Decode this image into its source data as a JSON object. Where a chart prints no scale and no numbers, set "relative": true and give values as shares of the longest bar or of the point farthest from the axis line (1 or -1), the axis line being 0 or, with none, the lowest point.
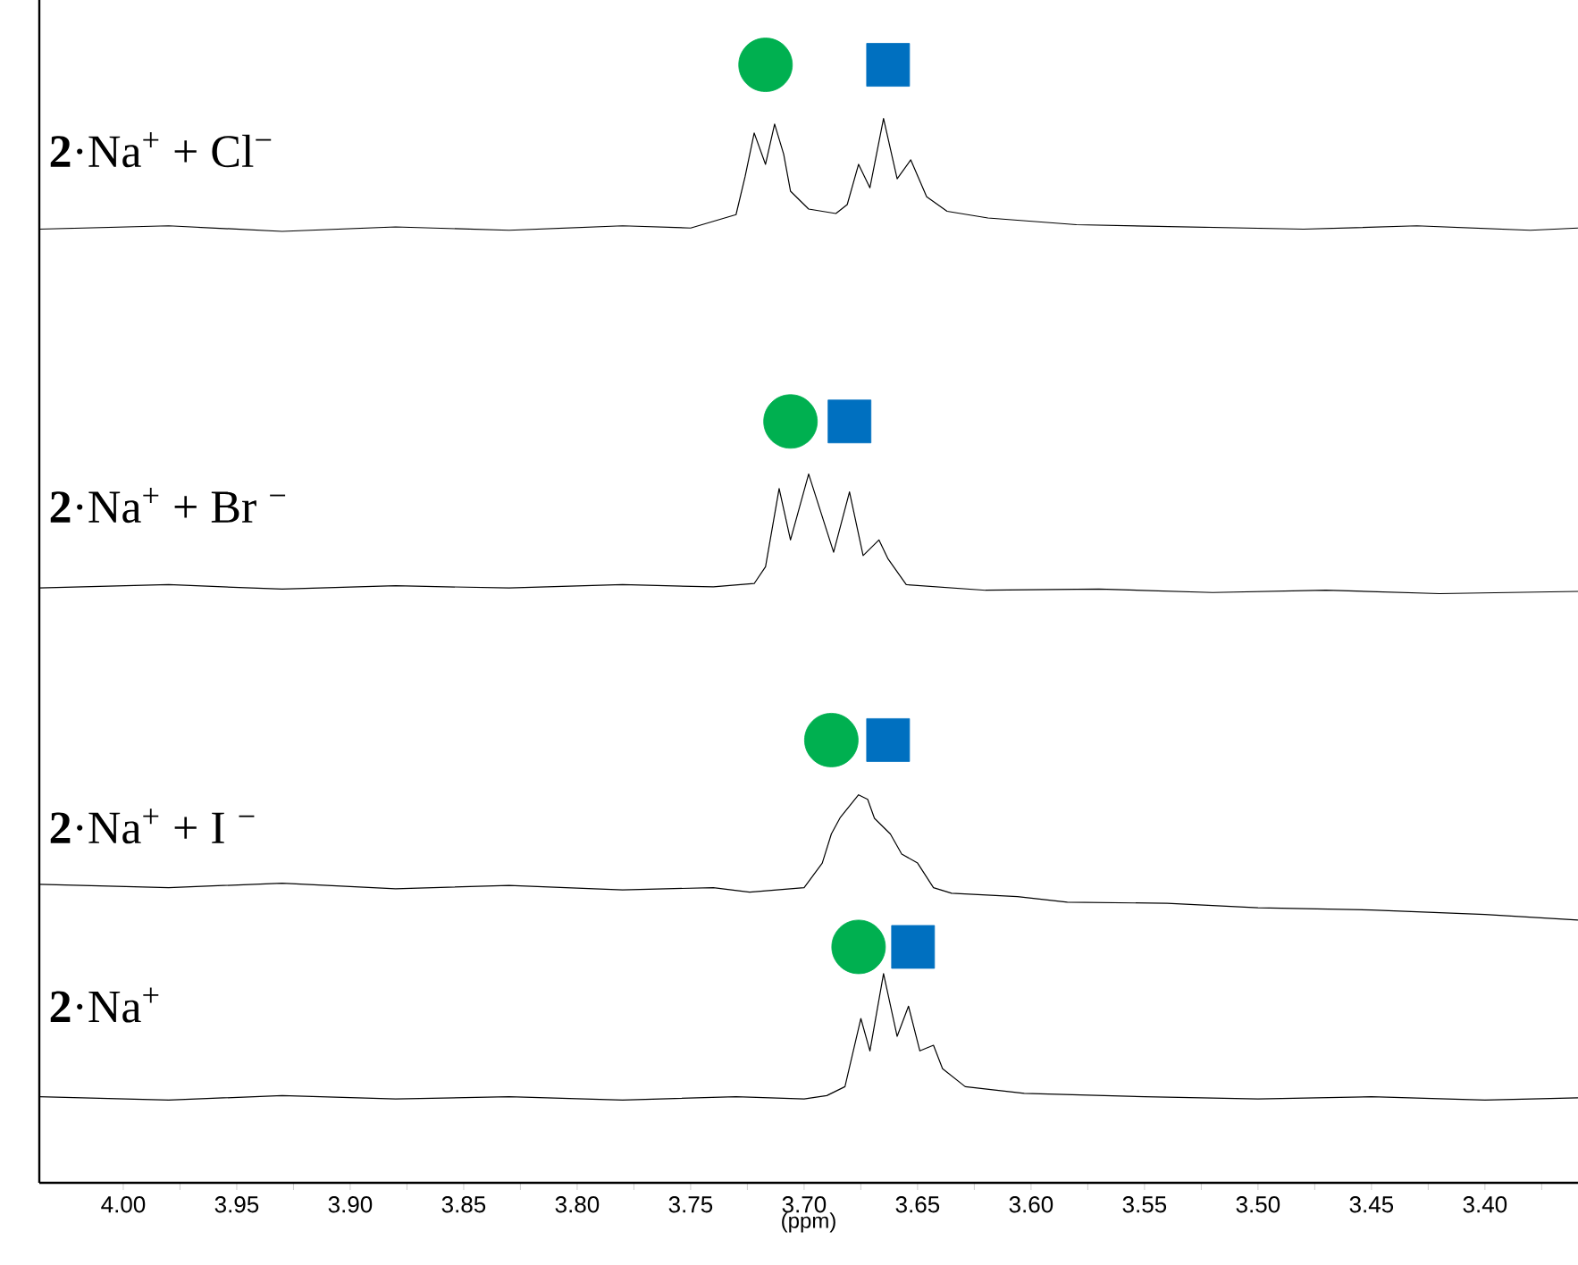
{
  "chart_data": {
    "type": "line",
    "xlabel": "(ppm)",
    "relative": true,
    "xlim": [
      4.037,
      3.359
    ],
    "xticks": [
      {
        "value": 4.0,
        "label": "4.00"
      },
      {
        "value": 3.975,
        "label": null
      },
      {
        "value": 3.95,
        "label": "3.95"
      },
      {
        "value": 3.925,
        "label": null
      },
      {
        "value": 3.9,
        "label": "3.90"
      },
      {
        "value": 3.875,
        "label": null
      },
      {
        "value": 3.85,
        "label": "3.85"
      },
      {
        "value": 3.825,
        "label": null
      },
      {
        "value": 3.8,
        "label": "3.80"
      },
      {
        "value": 3.775,
        "label": null
      },
      {
        "value": 3.75,
        "label": "3.75"
      },
      {
        "value": 3.725,
        "label": null
      },
      {
        "value": 3.7,
        "label": "3.70"
      },
      {
        "value": 3.675,
        "label": null
      },
      {
        "value": 3.65,
        "label": "3.65"
      },
      {
        "value": 3.625,
        "label": null
      },
      {
        "value": 3.6,
        "label": "3.60"
      },
      {
        "value": 3.575,
        "label": null
      },
      {
        "value": 3.55,
        "label": "3.55"
      },
      {
        "value": 3.525,
        "label": null
      },
      {
        "value": 3.5,
        "label": "3.50"
      },
      {
        "value": 3.475,
        "label": null
      },
      {
        "value": 3.45,
        "label": "3.45"
      },
      {
        "value": 3.425,
        "label": null
      },
      {
        "value": 3.4,
        "label": "3.40"
      },
      {
        "value": 3.375,
        "label": null
      }
    ],
    "grid": false,
    "series": [
      {
        "name": "**2**·Na$^{+}$ + Cl$^{−}$",
        "color": "#000000",
        "x": [
          4.037,
          3.98,
          3.93,
          3.88,
          3.83,
          3.78,
          3.75,
          3.73,
          3.726,
          3.722,
          3.717,
          3.713,
          3.709,
          3.706,
          3.698,
          3.686,
          3.681,
          3.676,
          3.671,
          3.665,
          3.659,
          3.653,
          3.646,
          3.637,
          3.619,
          3.58,
          3.53,
          3.48,
          3.43,
          3.38,
          3.359
        ],
        "values": [
          0.853,
          0.856,
          0.851,
          0.855,
          0.852,
          0.856,
          0.854,
          0.866,
          0.9,
          0.939,
          0.911,
          0.947,
          0.92,
          0.887,
          0.871,
          0.867,
          0.875,
          0.911,
          0.89,
          0.952,
          0.898,
          0.915,
          0.882,
          0.869,
          0.863,
          0.857,
          0.855,
          0.853,
          0.856,
          0.852,
          0.854
        ]
      },
      {
        "name": "**2**·Na$^{+}$ + Br $^{−}$",
        "color": "#000000",
        "x": [
          4.037,
          3.98,
          3.93,
          3.88,
          3.83,
          3.78,
          3.74,
          3.722,
          3.717,
          3.711,
          3.706,
          3.698,
          3.687,
          3.68,
          3.674,
          3.667,
          3.663,
          3.655,
          3.62,
          3.57,
          3.52,
          3.47,
          3.42,
          3.359
        ],
        "values": [
          0.532,
          0.535,
          0.531,
          0.534,
          0.532,
          0.535,
          0.533,
          0.536,
          0.551,
          0.621,
          0.575,
          0.634,
          0.564,
          0.618,
          0.561,
          0.575,
          0.558,
          0.535,
          0.53,
          0.531,
          0.528,
          0.53,
          0.527,
          0.529
        ]
      },
      {
        "name": "**2**·Na$^{+}$ + I $^{−}$",
        "color": "#000000",
        "x": [
          4.037,
          3.98,
          3.93,
          3.88,
          3.83,
          3.78,
          3.74,
          3.724,
          3.7,
          3.692,
          3.688,
          3.684,
          3.676,
          3.672,
          3.669,
          3.662,
          3.657,
          3.65,
          3.643,
          3.635,
          3.606,
          3.584,
          3.54,
          3.5,
          3.45,
          3.4,
          3.359
        ],
        "values": [
          0.267,
          0.264,
          0.268,
          0.263,
          0.266,
          0.262,
          0.264,
          0.26,
          0.264,
          0.286,
          0.312,
          0.327,
          0.347,
          0.343,
          0.326,
          0.312,
          0.294,
          0.286,
          0.264,
          0.259,
          0.256,
          0.251,
          0.25,
          0.246,
          0.244,
          0.24,
          0.235
        ]
      },
      {
        "name": "**2**·Na$^{+}$",
        "color": "#000000",
        "x": [
          4.037,
          3.98,
          3.93,
          3.88,
          3.83,
          3.78,
          3.73,
          3.7,
          3.69,
          3.682,
          3.675,
          3.671,
          3.665,
          3.659,
          3.654,
          3.649,
          3.643,
          3.639,
          3.629,
          3.603,
          3.55,
          3.5,
          3.45,
          3.4,
          3.359
        ],
        "values": [
          0.077,
          0.074,
          0.078,
          0.075,
          0.077,
          0.074,
          0.077,
          0.075,
          0.078,
          0.086,
          0.147,
          0.118,
          0.187,
          0.131,
          0.158,
          0.118,
          0.123,
          0.102,
          0.086,
          0.08,
          0.077,
          0.075,
          0.077,
          0.074,
          0.076
        ]
      },
      {
        "type": "scatter",
        "marker": "circle",
        "color": "#00b050",
        "x": [
          3.717,
          3.706,
          3.688,
          3.676
        ],
        "values": [
          1.0,
          0.681,
          0.396,
          0.211
        ]
      },
      {
        "type": "scatter",
        "marker": "square",
        "color": "#0070c0",
        "x": [
          3.663,
          3.68,
          3.663,
          3.652
        ],
        "values": [
          1.0,
          0.681,
          0.396,
          0.211
        ]
      }
    ]
  }
}
